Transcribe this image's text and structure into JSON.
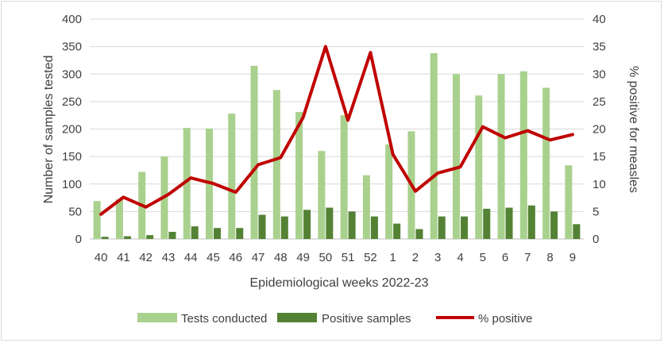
{
  "chart_data": {
    "type": "bar",
    "title": "",
    "categories": [
      "40",
      "41",
      "42",
      "43",
      "44",
      "45",
      "46",
      "47",
      "48",
      "49",
      "50",
      "51",
      "52",
      "1",
      "2",
      "3",
      "4",
      "5",
      "6",
      "7",
      "8",
      "9"
    ],
    "series": [
      {
        "name": "Tests conducted",
        "kind": "bar",
        "axis": "left",
        "color": "#a9d18e",
        "values": [
          69,
          72,
          122,
          150,
          202,
          201,
          228,
          315,
          271,
          231,
          160,
          225,
          116,
          172,
          196,
          338,
          300,
          261,
          300,
          305,
          275,
          134
        ]
      },
      {
        "name": "Positive samples",
        "kind": "bar",
        "axis": "left",
        "color": "#548235",
        "values": [
          4,
          5,
          7,
          13,
          23,
          20,
          20,
          44,
          41,
          53,
          57,
          50,
          41,
          28,
          18,
          41,
          41,
          55,
          57,
          61,
          50,
          27
        ]
      },
      {
        "name": "% positive",
        "kind": "line",
        "axis": "right",
        "color": "#c00000",
        "values": [
          4.5,
          7.6,
          5.8,
          8.1,
          11.1,
          10.1,
          8.5,
          13.5,
          14.8,
          22.1,
          35.0,
          21.6,
          33.9,
          15.4,
          8.7,
          12.0,
          13.1,
          20.4,
          18.4,
          19.7,
          18.0,
          19.0
        ]
      }
    ],
    "xlabel": "Epidemiological weeks 2022-23",
    "ylabel": "Number of samples tested",
    "y2label": "% positive for measles",
    "ylim": [
      0,
      400
    ],
    "y_ticks": [
      "0",
      "50",
      "100",
      "150",
      "200",
      "250",
      "300",
      "350",
      "400"
    ],
    "y2lim": [
      0,
      40
    ],
    "y2_ticks": [
      "0",
      "5",
      "10",
      "15",
      "20",
      "25",
      "30",
      "35",
      "40"
    ],
    "grid": true,
    "legend_position": "bottom"
  }
}
